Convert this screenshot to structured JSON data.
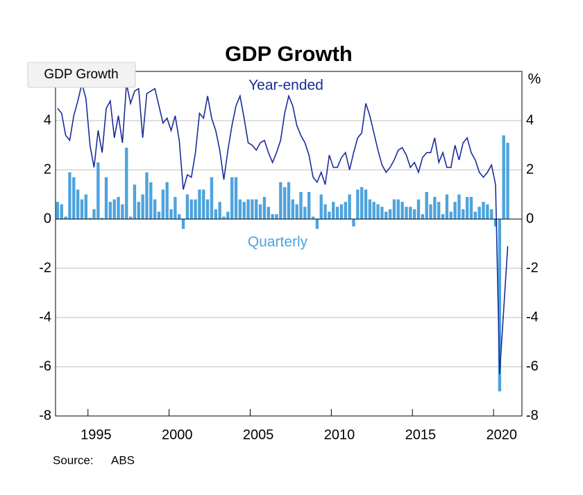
{
  "tooltip": "GDP Growth",
  "chart_data": {
    "type": "bar-line",
    "title": "GDP Growth",
    "y_unit": "%",
    "source_label": "Source:",
    "source": "ABS",
    "xlim": [
      1993,
      2021.75
    ],
    "xticks": [
      1995,
      2000,
      2005,
      2010,
      2015,
      2020
    ],
    "ylim": [
      -8,
      6
    ],
    "yticks": [
      -8,
      -6,
      -4,
      -2,
      0,
      2,
      4
    ],
    "grid": true,
    "x": [
      1993.125,
      1993.375,
      1993.625,
      1993.875,
      1994.125,
      1994.375,
      1994.625,
      1994.875,
      1995.125,
      1995.375,
      1995.625,
      1995.875,
      1996.125,
      1996.375,
      1996.625,
      1996.875,
      1997.125,
      1997.375,
      1997.625,
      1997.875,
      1998.125,
      1998.375,
      1998.625,
      1998.875,
      1999.125,
      1999.375,
      1999.625,
      1999.875,
      2000.125,
      2000.375,
      2000.625,
      2000.875,
      2001.125,
      2001.375,
      2001.625,
      2001.875,
      2002.125,
      2002.375,
      2002.625,
      2002.875,
      2003.125,
      2003.375,
      2003.625,
      2003.875,
      2004.125,
      2004.375,
      2004.625,
      2004.875,
      2005.125,
      2005.375,
      2005.625,
      2005.875,
      2006.125,
      2006.375,
      2006.625,
      2006.875,
      2007.125,
      2007.375,
      2007.625,
      2007.875,
      2008.125,
      2008.375,
      2008.625,
      2008.875,
      2009.125,
      2009.375,
      2009.625,
      2009.875,
      2010.125,
      2010.375,
      2010.625,
      2010.875,
      2011.125,
      2011.375,
      2011.625,
      2011.875,
      2012.125,
      2012.375,
      2012.625,
      2012.875,
      2013.125,
      2013.375,
      2013.625,
      2013.875,
      2014.125,
      2014.375,
      2014.625,
      2014.875,
      2015.125,
      2015.375,
      2015.625,
      2015.875,
      2016.125,
      2016.375,
      2016.625,
      2016.875,
      2017.125,
      2017.375,
      2017.625,
      2017.875,
      2018.125,
      2018.375,
      2018.625,
      2018.875,
      2019.125,
      2019.375,
      2019.625,
      2019.875,
      2020.125,
      2020.375,
      2020.625,
      2020.875
    ],
    "series": [
      {
        "name": "Quarterly",
        "type": "bar",
        "color": "#4ea3dd",
        "values": [
          0.7,
          0.6,
          0.1,
          1.9,
          1.7,
          1.2,
          0.8,
          1.0,
          0.05,
          0.4,
          2.3,
          0.05,
          1.7,
          0.7,
          0.8,
          0.9,
          0.6,
          2.9,
          0.1,
          1.4,
          0.7,
          1.0,
          1.9,
          1.5,
          0.8,
          0.3,
          1.2,
          1.5,
          0.4,
          0.9,
          0.2,
          -0.4,
          1.0,
          0.8,
          0.8,
          1.2,
          1.2,
          0.8,
          1.7,
          0.4,
          0.7,
          0.1,
          0.3,
          1.7,
          1.7,
          0.8,
          0.7,
          0.8,
          0.8,
          0.8,
          0.6,
          0.9,
          0.5,
          0.2,
          0.2,
          1.5,
          1.3,
          1.5,
          0.8,
          0.6,
          1.1,
          0.5,
          1.1,
          0.1,
          -0.4,
          1.0,
          0.6,
          0.3,
          0.7,
          0.5,
          0.6,
          0.7,
          1.0,
          -0.3,
          1.2,
          1.3,
          1.2,
          0.8,
          0.7,
          0.6,
          0.5,
          0.3,
          0.4,
          0.8,
          0.8,
          0.7,
          0.5,
          0.5,
          0.4,
          0.8,
          0.2,
          1.1,
          0.6,
          0.9,
          0.7,
          0.2,
          1.0,
          0.3,
          0.7,
          1.0,
          0.4,
          0.9,
          0.9,
          0.3,
          0.5,
          0.7,
          0.6,
          0.4,
          -0.3,
          -7.0,
          3.4,
          3.1
        ]
      },
      {
        "name": "Year-ended",
        "type": "line",
        "color": "#1a2b99",
        "values": [
          4.5,
          4.3,
          3.4,
          3.2,
          4.2,
          4.8,
          5.5,
          4.9,
          3.0,
          2.1,
          3.6,
          2.7,
          4.5,
          4.8,
          3.3,
          4.2,
          3.1,
          5.5,
          4.7,
          5.2,
          5.3,
          3.3,
          5.1,
          5.2,
          5.3,
          4.6,
          3.9,
          4.1,
          3.6,
          4.2,
          3.2,
          1.2,
          1.8,
          1.7,
          2.7,
          4.3,
          4.1,
          5.0,
          4.1,
          3.6,
          2.8,
          1.6,
          2.8,
          3.8,
          4.6,
          5.0,
          4.1,
          3.1,
          3.0,
          2.8,
          3.1,
          3.2,
          2.7,
          2.3,
          2.7,
          3.2,
          4.3,
          5.0,
          4.6,
          3.8,
          3.4,
          3.1,
          2.6,
          1.7,
          1.5,
          1.9,
          1.4,
          2.6,
          2.1,
          2.1,
          2.5,
          2.7,
          2.0,
          2.7,
          3.3,
          3.5,
          4.7,
          4.2,
          3.5,
          2.8,
          2.2,
          1.9,
          2.1,
          2.4,
          2.8,
          2.9,
          2.6,
          2.1,
          2.3,
          1.9,
          2.5,
          2.7,
          2.7,
          3.3,
          2.3,
          2.7,
          2.1,
          2.1,
          3.0,
          2.4,
          3.1,
          3.3,
          2.7,
          2.4,
          1.9,
          1.7,
          1.9,
          2.2,
          1.4,
          -6.3,
          -3.7,
          -1.1
        ]
      }
    ]
  }
}
